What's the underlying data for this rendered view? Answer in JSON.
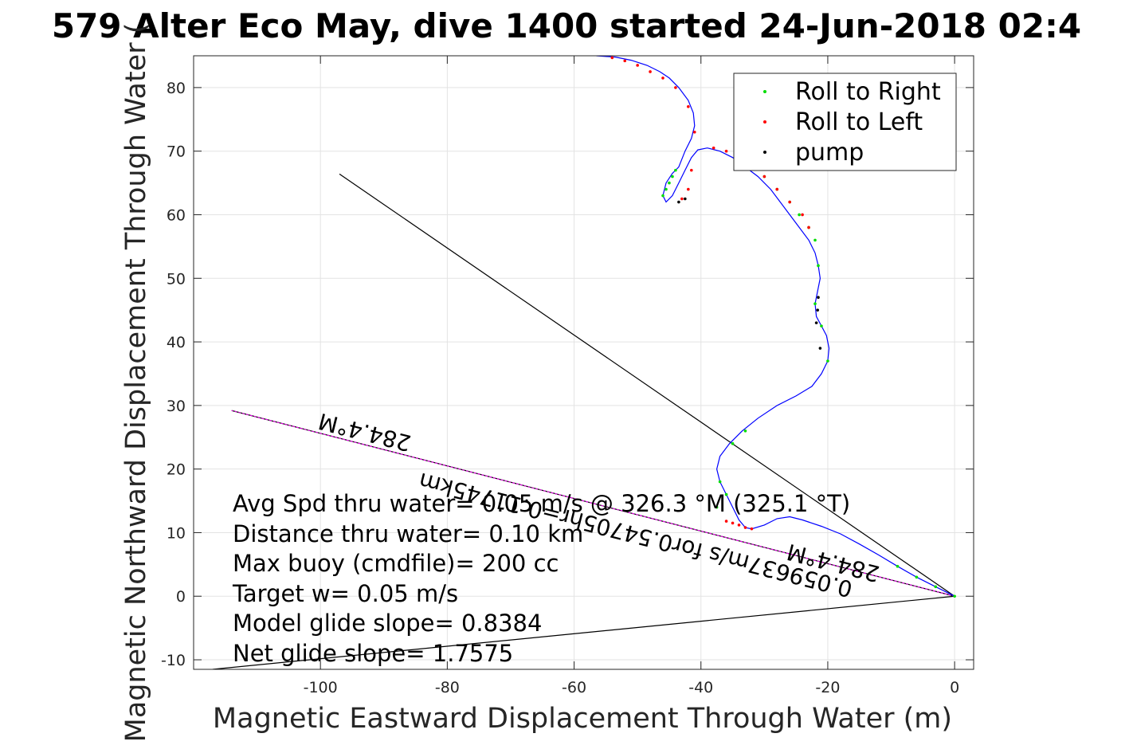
{
  "chart_data": {
    "type": "line",
    "title": "579 Alter Eco May, dive 1400 started 24-Jun-2018 02:4",
    "xlabel": "Magnetic Eastward Displacement Through Water (m)",
    "ylabel": "Magnetic Northward Displacement Through Water (",
    "xlim": [
      -120,
      3
    ],
    "ylim": [
      -11.5,
      85
    ],
    "xticks": [
      -100,
      -80,
      -60,
      -40,
      -20,
      0
    ],
    "yticks": [
      -10,
      0,
      10,
      20,
      30,
      40,
      50,
      60,
      70,
      80
    ],
    "grid": true,
    "legend_position": "top-right",
    "legend": [
      "Roll to Right",
      "Roll to Left",
      "pump"
    ],
    "colors": {
      "track": "#0000ff",
      "roll_right": "#00dd00",
      "roll_left": "#ff0000",
      "pump": "#000000",
      "reference_line": "#000000",
      "heading_line": "#ff00ff"
    },
    "track": {
      "name": "",
      "x": [
        0,
        -3,
        -6,
        -9,
        -12,
        -15,
        -18,
        -21,
        -24,
        -26,
        -28,
        -30,
        -32,
        -33,
        -34,
        -35,
        -36,
        -37,
        -37.5,
        -37,
        -35.5,
        -33.5,
        -31,
        -28,
        -25,
        -22.5,
        -21,
        -20,
        -19.8,
        -20.2,
        -21,
        -21.8,
        -22,
        -21.6,
        -21.2,
        -21.5,
        -22,
        -23,
        -24.5,
        -26,
        -27.5,
        -29,
        -31,
        -33,
        -35,
        -37,
        -39,
        -40.5,
        -41.5,
        -42.5,
        -43.5,
        -44.5,
        -45.5,
        -46,
        -45.5,
        -44.5,
        -43.5,
        -42.5,
        -41.5,
        -41,
        -41.2,
        -42,
        -43.5,
        -45,
        -46.5,
        -48.5,
        -51,
        -53.5,
        -56.5
      ],
      "y": [
        0,
        1.5,
        3,
        4.7,
        6.5,
        8.2,
        9.8,
        11,
        12,
        12.5,
        12.2,
        11.2,
        10.6,
        10.8,
        12,
        14,
        16,
        18,
        20,
        22,
        24,
        26,
        28,
        30,
        31.5,
        33,
        35,
        37,
        39,
        41,
        42.5,
        44,
        46,
        48,
        50,
        52,
        54,
        56,
        58,
        60,
        62,
        64,
        66,
        67.5,
        69,
        70,
        70.5,
        70.2,
        69,
        67,
        65,
        63,
        62,
        63,
        65,
        66.5,
        67.5,
        70,
        72,
        74,
        76,
        78,
        80,
        81.5,
        82.5,
        83.5,
        84.3,
        84.8,
        85
      ]
    },
    "series": [
      {
        "name": "Roll to Right",
        "x": [
          0,
          -3,
          -6,
          -9,
          -20,
          -21,
          -22,
          -21.5,
          -22,
          -23,
          -24.5,
          -26,
          -28,
          -30,
          -33,
          -35,
          -37,
          -37.5,
          -36,
          -46,
          -45.5,
          -45,
          -44.5,
          -44
        ],
        "y": [
          0,
          1.5,
          3,
          4.7,
          37,
          42.5,
          46,
          52,
          56,
          58,
          60,
          62,
          64,
          66,
          26,
          24,
          18,
          14,
          16,
          63,
          64,
          65,
          66,
          67
        ]
      },
      {
        "name": "Roll to Left",
        "x": [
          -32,
          -33,
          -34,
          -35,
          -36,
          -43,
          -42,
          -41.5,
          -41,
          -42,
          -44,
          -46,
          -48,
          -50,
          -52,
          -54,
          -38,
          -36,
          -34,
          -32,
          -30,
          -28,
          -26,
          -24,
          -23
        ],
        "y": [
          10.6,
          10.8,
          11.2,
          11.5,
          11.8,
          62.5,
          64,
          67,
          73,
          77,
          80,
          81.5,
          82.5,
          83.5,
          84.2,
          84.7,
          70.5,
          70,
          69,
          67.5,
          66,
          64,
          62,
          60,
          58
        ]
      },
      {
        "name": "pump",
        "x": [
          -43.5,
          -42.5,
          -21.6,
          -21.8,
          -21.2,
          -21.5
        ],
        "y": [
          62,
          62.5,
          45,
          43,
          39,
          47
        ]
      }
    ],
    "reference_lines": [
      {
        "x": [
          0,
          -97
        ],
        "y": [
          0,
          66.4
        ]
      },
      {
        "x": [
          0,
          -117
        ],
        "y": [
          0,
          -11.5
        ]
      },
      {
        "x": [
          0,
          -114
        ],
        "y": [
          0,
          29.2
        ]
      }
    ],
    "annotations": [
      "284.4°M",
      "284.4°M",
      "0.059637m/s for0.54705hr=0.11745km"
    ],
    "stats": [
      "Avg Spd thru water=  0.05 m/s @ 326.3 °M (325.1 °T)",
      "Distance thru water=  0.10 km",
      "Max buoy (cmdfile)= 200 cc",
      "Target w= 0.05 m/s",
      "Model glide slope= 0.8384",
      "Net glide slope= 1.7575"
    ]
  }
}
